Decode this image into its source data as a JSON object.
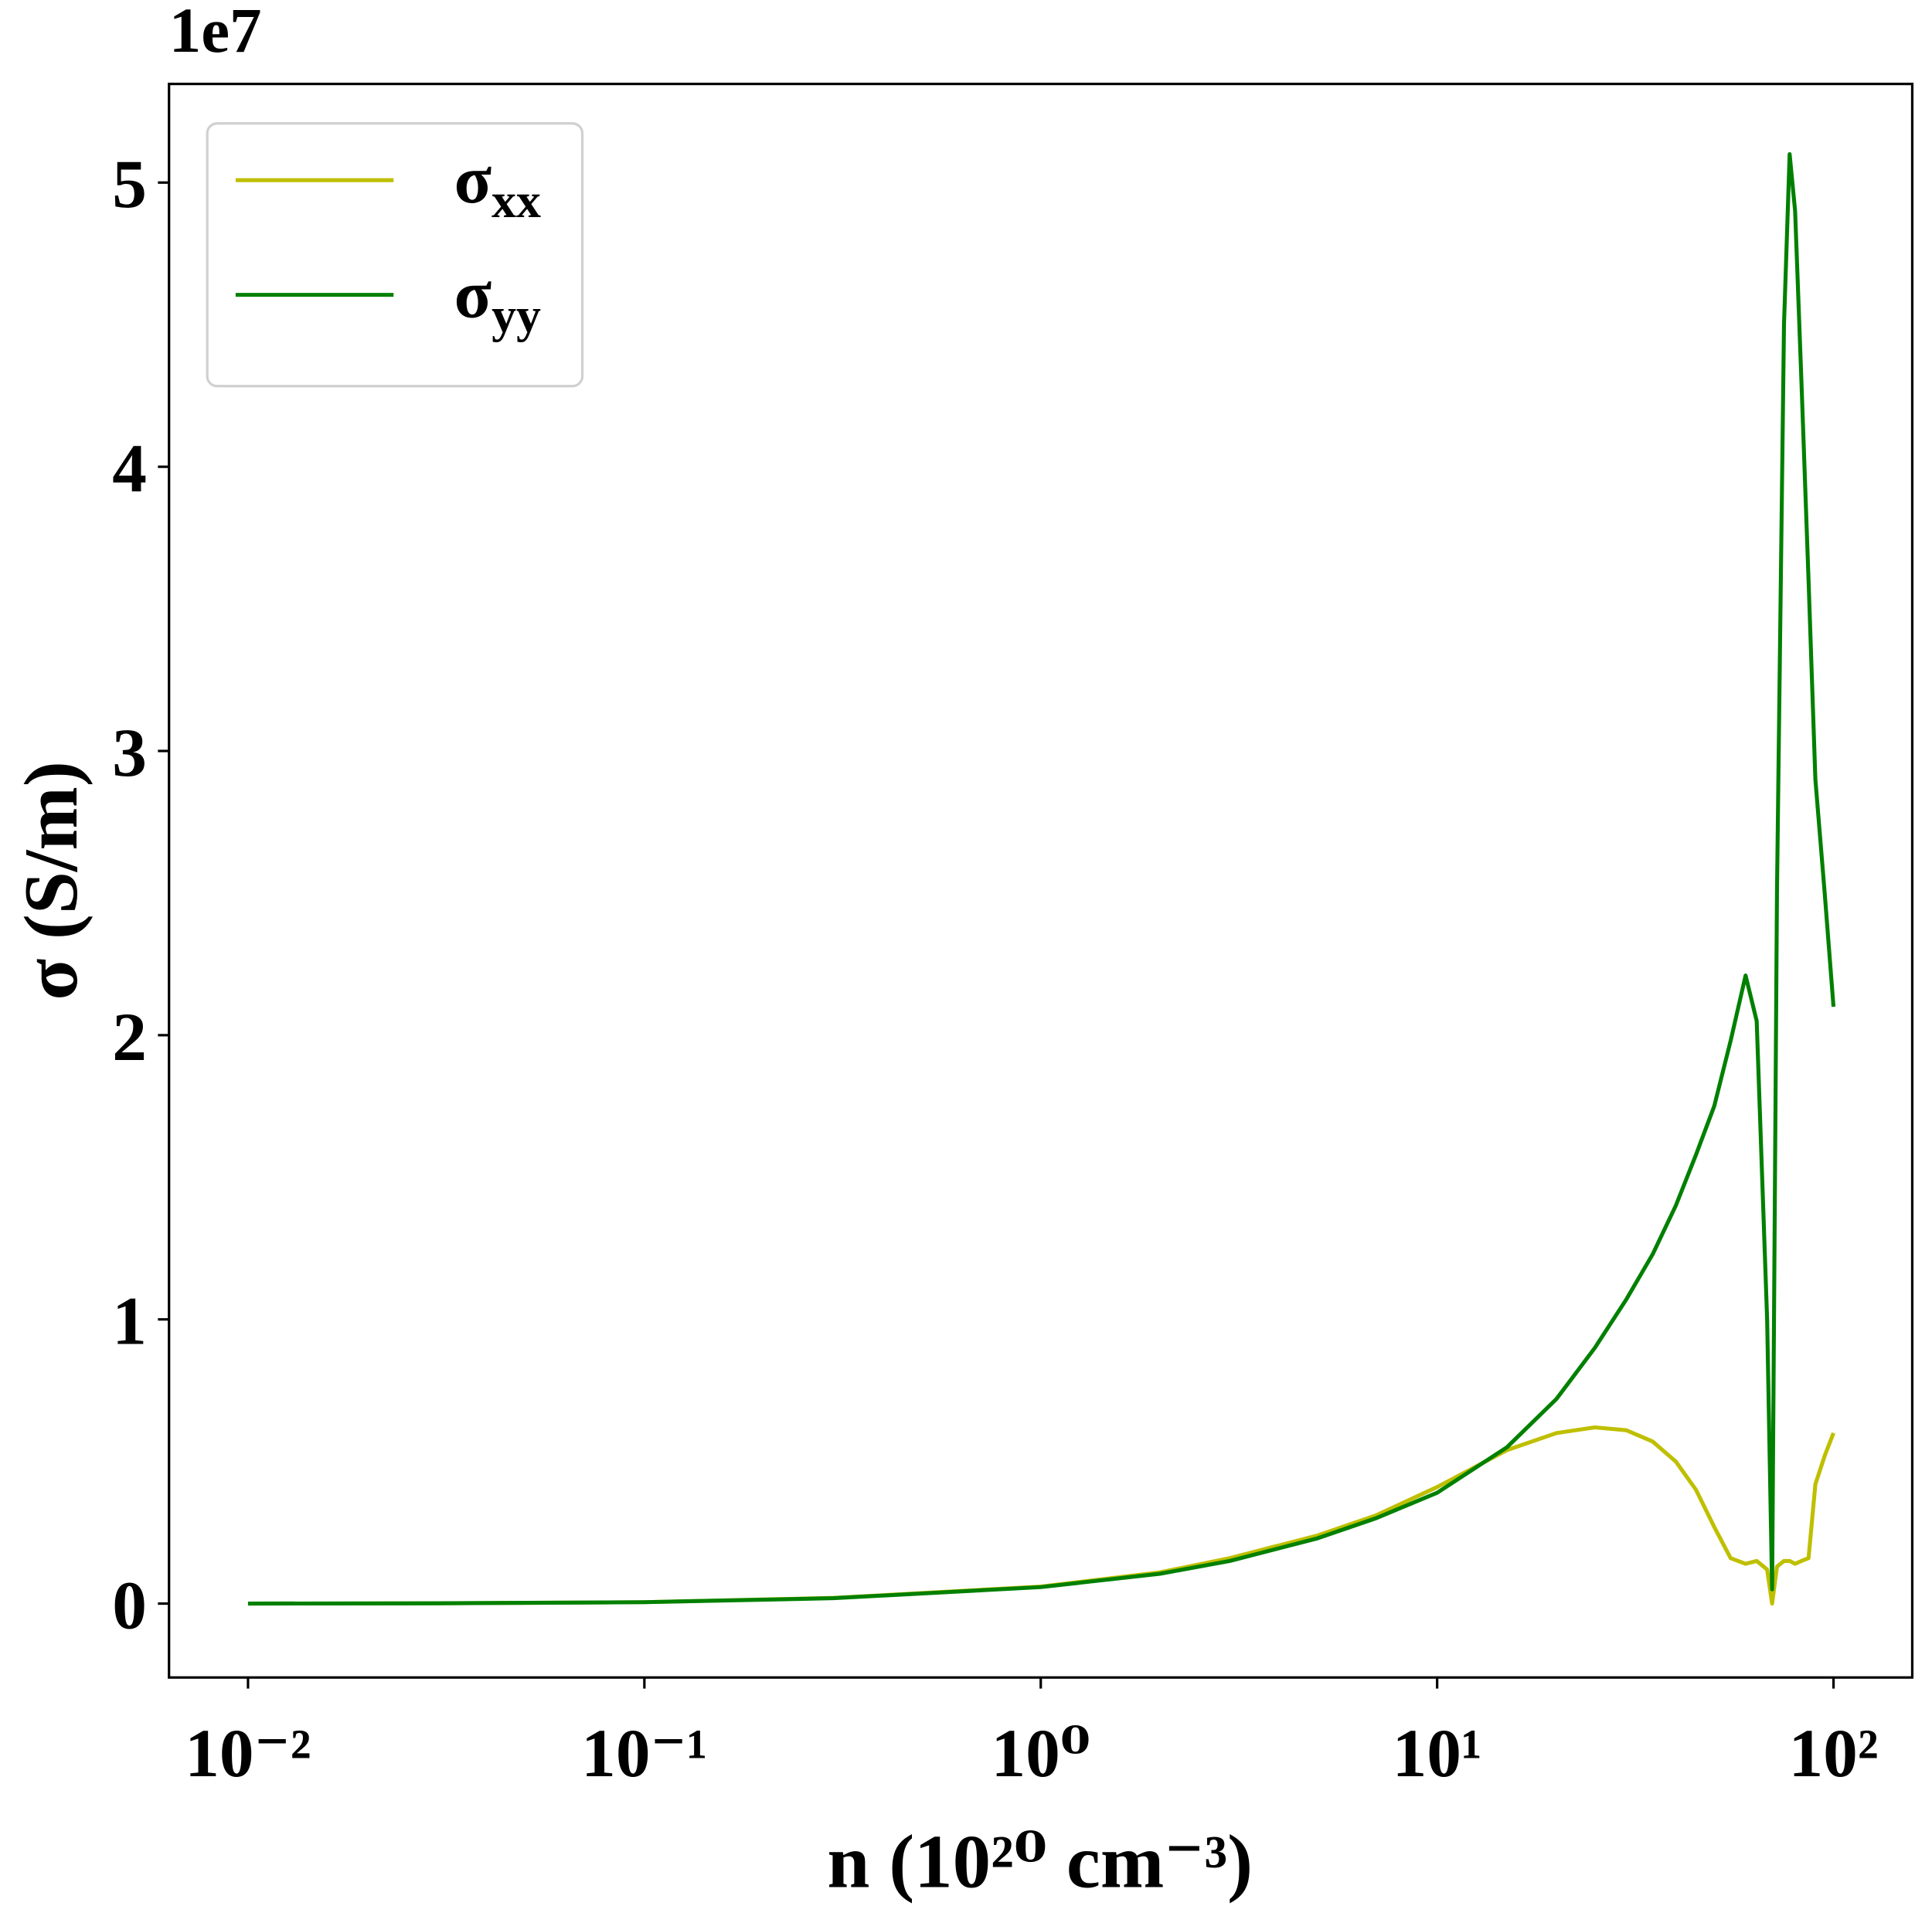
{
  "chart_data": {
    "type": "line",
    "x_label": "n (10²⁰ cm⁻³)",
    "y_label": "σ (S/m)",
    "y_offset_text": "1e7",
    "x_scale": "log",
    "grid": false,
    "legend": "upper left",
    "xlim": [
      0.00632,
      158
    ],
    "xticks": [
      {
        "value": 0.01,
        "label": "10⁻²"
      },
      {
        "value": 0.1,
        "label": "10⁻¹"
      },
      {
        "value": 1,
        "label": "10⁰"
      },
      {
        "value": 10,
        "label": "10¹"
      },
      {
        "value": 100,
        "label": "10²"
      }
    ],
    "ylim": [
      -0.26,
      5.347
    ],
    "yticks": [
      0,
      1,
      2,
      3,
      4,
      5
    ],
    "x": [
      0.01,
      0.03,
      0.1,
      0.3,
      1,
      2,
      3,
      5,
      7,
      10,
      15,
      20,
      25,
      30,
      35,
      40,
      45,
      50,
      55,
      60,
      64,
      68,
      70,
      72,
      75,
      77.5,
      80,
      83,
      86.5,
      90,
      95,
      100
    ],
    "series": [
      {
        "name": "σxx",
        "color": "#bfbf00",
        "values": [
          0,
          0.001,
          0.005,
          0.02,
          0.06,
          0.11,
          0.16,
          0.24,
          0.31,
          0.41,
          0.54,
          0.6,
          0.62,
          0.61,
          0.57,
          0.5,
          0.4,
          0.27,
          0.16,
          0.14,
          0.15,
          0.12,
          0.0,
          0.13,
          0.15,
          0.15,
          0.14,
          0.15,
          0.16,
          0.42,
          0.52,
          0.6
        ]
      },
      {
        "name": "σyy",
        "color": "#008000",
        "values": [
          0,
          0.001,
          0.005,
          0.019,
          0.058,
          0.105,
          0.15,
          0.23,
          0.3,
          0.39,
          0.55,
          0.72,
          0.9,
          1.07,
          1.23,
          1.4,
          1.58,
          1.75,
          1.98,
          2.21,
          2.05,
          1.0,
          0.05,
          2.5,
          4.5,
          5.1,
          4.9,
          4.3,
          3.6,
          2.9,
          2.5,
          2.1
        ]
      }
    ]
  }
}
